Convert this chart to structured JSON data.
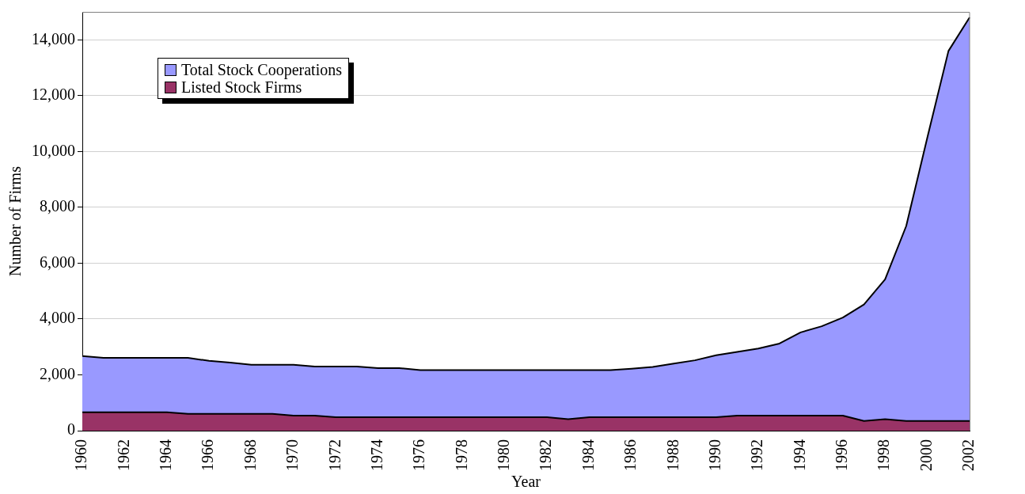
{
  "chart_data": {
    "type": "area",
    "xlabel": "Year",
    "ylabel": "Number of Firms",
    "categories": [
      "1960",
      null,
      "1962",
      null,
      "1964",
      null,
      "1966",
      null,
      "1968",
      null,
      "1970",
      null,
      "1972",
      null,
      "1974",
      null,
      "1976",
      null,
      "1978",
      null,
      "1980",
      null,
      "1982",
      null,
      "1984",
      null,
      "1986",
      null,
      "1988",
      null,
      "1990",
      null,
      "1992",
      null,
      "1994",
      null,
      "1996",
      null,
      "1998",
      null,
      "2000",
      null,
      "2002"
    ],
    "series": [
      {
        "name": "Total Stock Cooperations",
        "color": "#9999ff",
        "values": [
          2670,
          2610,
          2610,
          2610,
          2610,
          2610,
          2500,
          2440,
          2360,
          2360,
          2360,
          2300,
          2300,
          2300,
          2240,
          2240,
          2170,
          2170,
          2170,
          2170,
          2170,
          2170,
          2170,
          2170,
          2170,
          2170,
          2220,
          2280,
          2400,
          2520,
          2700,
          2820,
          2940,
          3120,
          3520,
          3740,
          4050,
          4520,
          5420,
          7330,
          10500,
          13600,
          14800
        ]
      },
      {
        "name": "Listed Stock Firms",
        "color": "#993366",
        "values": [
          660,
          660,
          660,
          660,
          660,
          600,
          600,
          600,
          600,
          600,
          540,
          540,
          480,
          480,
          480,
          480,
          480,
          480,
          480,
          480,
          480,
          480,
          480,
          410,
          480,
          480,
          480,
          480,
          480,
          480,
          480,
          540,
          540,
          540,
          540,
          540,
          540,
          350,
          410,
          350,
          350,
          350,
          350
        ]
      }
    ],
    "ylim": [
      0,
      15000
    ],
    "yticks": [
      0,
      {
        "value": 2000,
        "label": "2,000"
      },
      {
        "value": 4000,
        "label": "4,000"
      },
      {
        "value": 6000,
        "label": "6,000"
      },
      {
        "value": 8000,
        "label": "8,000"
      },
      {
        "value": 10000,
        "label": "10,000"
      },
      {
        "value": 12000,
        "label": "12,000"
      },
      {
        "value": 14000,
        "label": "14,000"
      }
    ],
    "grid": "y",
    "legend": "top left"
  }
}
